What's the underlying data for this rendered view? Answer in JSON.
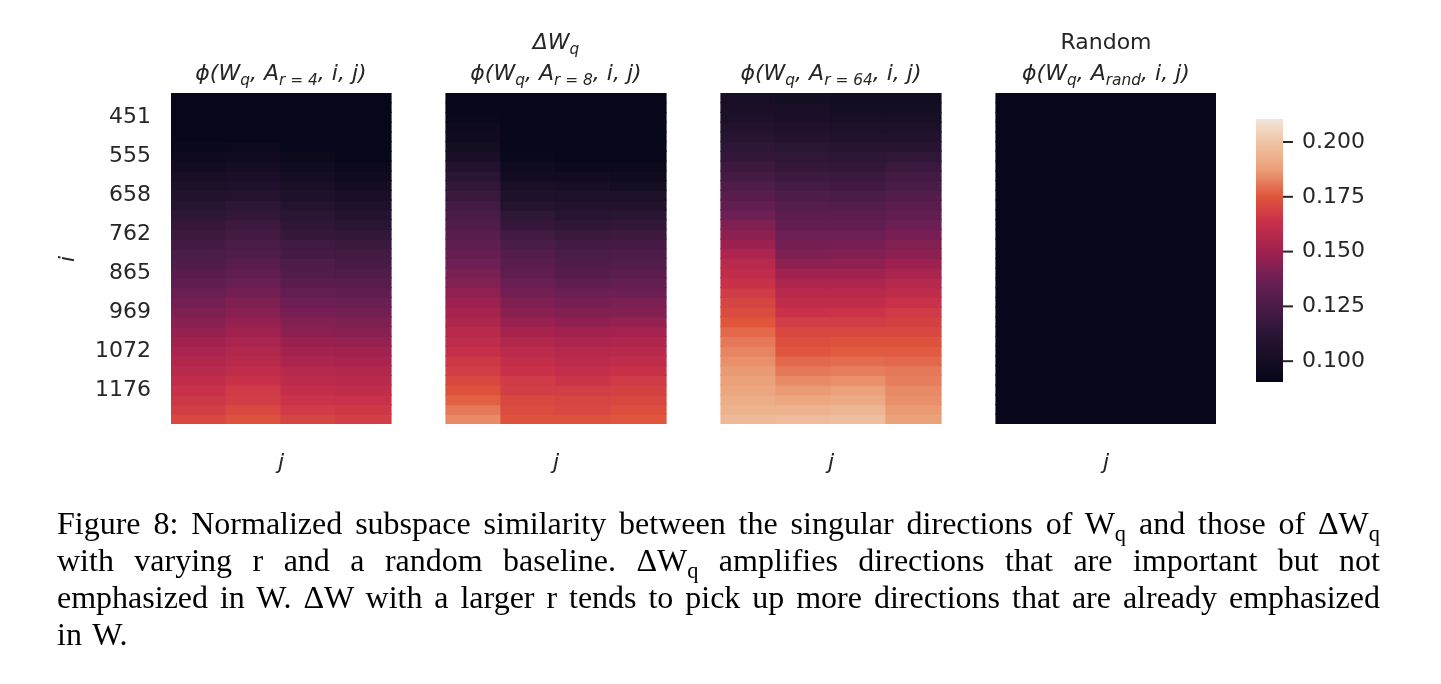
{
  "chart_data": {
    "type": "heatmap",
    "ylabel": "i",
    "categories": [
      null,
      null,
      null,
      null,
      null,
      null,
      null,
      null,
      null,
      null,
      null,
      null,
      null,
      null,
      null,
      null,
      null,
      null,
      null
    ],
    "y_categories": [
      null,
      null,
      "451",
      null,
      null,
      null,
      "555",
      null,
      null,
      null,
      "658",
      null,
      null,
      null,
      "762",
      null,
      null,
      null,
      "865",
      null,
      null,
      null,
      "969",
      null,
      null,
      null,
      "1072",
      null,
      null,
      null,
      "1176",
      null,
      null,
      null
    ],
    "clim": [
      0.0905,
      0.2105
    ],
    "cticks": [
      {
        "value": 0.1,
        "label": "0.100"
      },
      {
        "value": 0.125,
        "label": "0.125"
      },
      {
        "value": 0.15,
        "label": "0.150"
      },
      {
        "value": 0.175,
        "label": "0.175"
      },
      {
        "value": 0.2,
        "label": "0.200"
      }
    ],
    "cells": [
      [
        0.091,
        0.091,
        0.091,
        0.091,
        null,
        0.091,
        0.091,
        0.091,
        0.091,
        null,
        0.102,
        0.1,
        0.099,
        0.099,
        null,
        0.091,
        0.091,
        0.091,
        0.091
      ],
      [
        0.091,
        0.091,
        0.091,
        0.091,
        null,
        0.091,
        0.091,
        0.091,
        0.091,
        null,
        0.103,
        0.102,
        0.1,
        0.1,
        null,
        0.091,
        0.091,
        0.091,
        0.091
      ],
      [
        0.091,
        0.091,
        0.091,
        0.091,
        null,
        0.093,
        0.091,
        0.091,
        0.091,
        null,
        0.105,
        0.103,
        0.102,
        0.102,
        null,
        0.091,
        0.091,
        0.091,
        0.091
      ],
      [
        0.091,
        0.091,
        0.091,
        0.091,
        null,
        0.096,
        0.091,
        0.091,
        0.091,
        null,
        0.108,
        0.106,
        0.105,
        0.105,
        null,
        0.091,
        0.091,
        0.091,
        0.091
      ],
      [
        0.091,
        0.091,
        0.091,
        0.091,
        null,
        0.097,
        0.091,
        0.091,
        0.091,
        null,
        0.111,
        0.109,
        0.108,
        0.108,
        null,
        0.091,
        0.091,
        0.091,
        0.091
      ],
      [
        0.093,
        0.094,
        0.091,
        0.091,
        null,
        0.1,
        0.091,
        0.091,
        0.091,
        null,
        0.114,
        0.112,
        0.111,
        0.111,
        null,
        0.091,
        0.091,
        0.091,
        0.091
      ],
      [
        0.096,
        0.097,
        0.094,
        0.091,
        null,
        0.103,
        0.093,
        0.091,
        0.091,
        null,
        0.116,
        0.115,
        0.114,
        0.115,
        null,
        0.091,
        0.091,
        0.091,
        0.091
      ],
      [
        0.099,
        0.1,
        0.097,
        0.094,
        null,
        0.108,
        0.096,
        0.094,
        0.094,
        null,
        0.12,
        0.117,
        0.116,
        0.119,
        null,
        0.091,
        0.091,
        0.091,
        0.091
      ],
      [
        0.102,
        0.103,
        0.1,
        0.097,
        null,
        0.112,
        0.099,
        0.099,
        0.097,
        null,
        0.123,
        0.12,
        0.119,
        0.122,
        null,
        0.091,
        0.091,
        0.091,
        0.091
      ],
      [
        0.105,
        0.106,
        0.103,
        0.1,
        null,
        0.116,
        0.103,
        0.102,
        0.1,
        null,
        0.127,
        0.123,
        0.122,
        0.125,
        null,
        0.091,
        0.091,
        0.091,
        0.091
      ],
      [
        0.108,
        0.109,
        0.106,
        0.103,
        null,
        0.119,
        0.106,
        0.105,
        0.105,
        null,
        0.13,
        0.126,
        0.125,
        0.128,
        null,
        0.091,
        0.091,
        0.091,
        0.091
      ],
      [
        0.111,
        0.114,
        0.109,
        0.106,
        null,
        0.122,
        0.109,
        0.108,
        0.108,
        null,
        0.134,
        0.129,
        0.128,
        0.131,
        null,
        0.091,
        0.091,
        0.091,
        0.091
      ],
      [
        0.114,
        0.116,
        0.112,
        0.109,
        null,
        0.125,
        0.114,
        0.111,
        0.112,
        null,
        0.138,
        0.131,
        0.131,
        0.134,
        null,
        0.091,
        0.091,
        0.091,
        0.091
      ],
      [
        0.117,
        0.12,
        0.115,
        0.112,
        null,
        0.127,
        0.117,
        0.115,
        0.116,
        null,
        0.142,
        0.134,
        0.134,
        0.137,
        null,
        0.091,
        0.091,
        0.091,
        0.091
      ],
      [
        0.12,
        0.122,
        0.117,
        0.116,
        null,
        0.13,
        0.121,
        0.119,
        0.12,
        null,
        0.145,
        0.137,
        0.137,
        0.14,
        null,
        0.091,
        0.091,
        0.091,
        0.091
      ],
      [
        0.122,
        0.125,
        0.121,
        0.119,
        null,
        0.132,
        0.125,
        0.122,
        0.123,
        null,
        0.149,
        0.139,
        0.14,
        0.143,
        null,
        0.091,
        0.091,
        0.091,
        0.091
      ],
      [
        0.125,
        0.127,
        0.123,
        0.122,
        null,
        0.135,
        0.128,
        0.125,
        0.126,
        null,
        0.154,
        0.142,
        0.143,
        0.145,
        null,
        0.091,
        0.091,
        0.091,
        0.091
      ],
      [
        0.127,
        0.13,
        0.126,
        0.124,
        null,
        0.138,
        0.131,
        0.127,
        0.128,
        null,
        0.158,
        0.145,
        0.146,
        0.149,
        null,
        0.091,
        0.091,
        0.091,
        0.091
      ],
      [
        0.13,
        0.133,
        0.128,
        0.127,
        null,
        0.141,
        0.133,
        0.129,
        0.131,
        null,
        0.161,
        0.15,
        0.15,
        0.153,
        null,
        0.091,
        0.091,
        0.091,
        0.091
      ],
      [
        0.133,
        0.136,
        0.131,
        0.13,
        null,
        0.143,
        0.136,
        0.133,
        0.134,
        null,
        0.164,
        0.154,
        0.154,
        0.157,
        null,
        0.091,
        0.091,
        0.091,
        0.091
      ],
      [
        0.136,
        0.139,
        0.134,
        0.133,
        null,
        0.146,
        0.139,
        0.137,
        0.137,
        null,
        0.167,
        0.158,
        0.158,
        0.16,
        null,
        0.091,
        0.091,
        0.091,
        0.091
      ],
      [
        0.139,
        0.142,
        0.137,
        0.136,
        null,
        0.149,
        0.142,
        0.14,
        0.141,
        null,
        0.17,
        0.161,
        0.161,
        0.164,
        null,
        0.091,
        0.091,
        0.091,
        0.091
      ],
      [
        0.142,
        0.144,
        0.14,
        0.139,
        null,
        0.152,
        0.144,
        0.143,
        0.143,
        null,
        0.172,
        0.164,
        0.165,
        0.167,
        null,
        0.091,
        0.091,
        0.091,
        0.091
      ],
      [
        0.144,
        0.147,
        0.143,
        0.142,
        null,
        0.155,
        0.148,
        0.146,
        0.147,
        null,
        0.175,
        0.168,
        0.168,
        0.169,
        null,
        0.091,
        0.091,
        0.091,
        0.091
      ],
      [
        0.147,
        0.15,
        0.145,
        0.144,
        null,
        0.158,
        0.152,
        0.15,
        0.151,
        null,
        0.178,
        0.171,
        0.171,
        0.171,
        null,
        0.091,
        0.091,
        0.091,
        0.091
      ],
      [
        0.15,
        0.153,
        0.148,
        0.147,
        null,
        0.16,
        0.156,
        0.154,
        0.155,
        null,
        0.181,
        0.173,
        0.174,
        0.174,
        null,
        0.091,
        0.091,
        0.091,
        0.091
      ],
      [
        0.153,
        0.156,
        0.151,
        0.15,
        null,
        0.163,
        0.159,
        0.157,
        0.158,
        null,
        0.183,
        0.175,
        0.176,
        0.176,
        null,
        0.091,
        0.091,
        0.091,
        0.091
      ],
      [
        0.156,
        0.158,
        0.154,
        0.153,
        null,
        0.166,
        0.162,
        0.159,
        0.161,
        null,
        0.185,
        0.178,
        0.179,
        0.178,
        null,
        0.091,
        0.091,
        0.091,
        0.091
      ],
      [
        0.158,
        0.161,
        0.157,
        0.156,
        null,
        0.168,
        0.164,
        0.162,
        0.164,
        null,
        0.187,
        0.181,
        0.182,
        0.181,
        null,
        0.091,
        0.091,
        0.091,
        0.091
      ],
      [
        0.161,
        0.164,
        0.159,
        0.158,
        null,
        0.171,
        0.167,
        0.165,
        0.167,
        null,
        0.188,
        0.184,
        0.185,
        0.182,
        null,
        0.091,
        0.091,
        0.091,
        0.091
      ],
      [
        0.164,
        0.167,
        0.162,
        0.161,
        null,
        0.174,
        0.168,
        0.168,
        0.169,
        null,
        0.19,
        0.187,
        0.188,
        0.184,
        null,
        0.091,
        0.091,
        0.091,
        0.091
      ],
      [
        0.166,
        0.168,
        0.165,
        0.164,
        null,
        0.177,
        0.171,
        0.17,
        0.171,
        null,
        0.192,
        0.19,
        0.191,
        0.185,
        null,
        0.091,
        0.091,
        0.091,
        0.091
      ],
      [
        0.168,
        0.171,
        0.167,
        0.166,
        null,
        0.181,
        0.172,
        0.171,
        0.173,
        null,
        0.194,
        0.194,
        0.195,
        0.187,
        null,
        0.091,
        0.091,
        0.091,
        0.091
      ],
      [
        0.171,
        0.174,
        0.17,
        0.168,
        null,
        0.184,
        0.174,
        0.174,
        0.175,
        null,
        0.196,
        0.197,
        0.198,
        0.188,
        null,
        0.091,
        0.091,
        0.091,
        0.091
      ]
    ],
    "annotations": [
      "ϕ(W$_{q}$, A$_{r = 4}$, i, j)",
      "ΔW$_{q}$\nϕ(W$_{q}$, A$_{r = 8}$, i, j)",
      "ϕ(W$_{q}$, A$_{r = 64}$, i, j)",
      "Random\nϕ(W$_{q}$, A$_{rand}$, i, j)",
      "j",
      "j",
      "j",
      "j",
      "Figure 8: Normalized subspace similarity between the singular directions of W$_{q}$ and those of ΔW$_{q}$ with varying r and a random baseline. ΔW$_{q}$ amplifies directions that are important but not emphasized in W. ΔW with a larger r tends to pick up more directions that are already emphasized in W."
    ]
  }
}
